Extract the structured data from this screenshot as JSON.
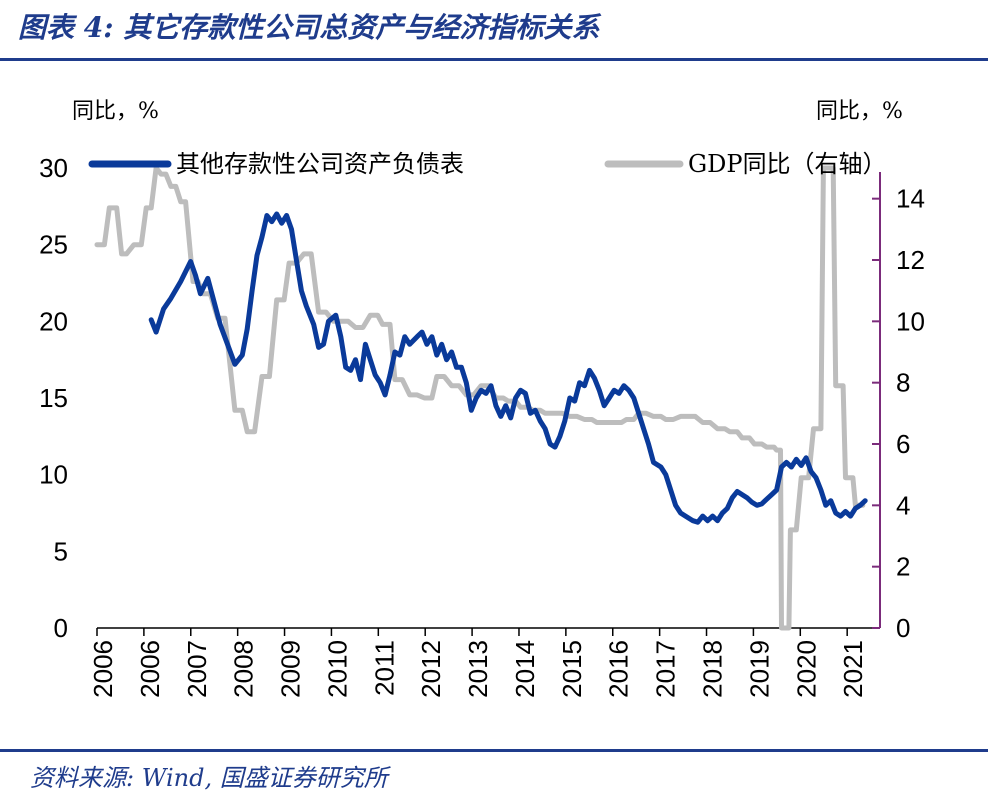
{
  "header": {
    "title": "图表 4: 其它存款性公司总资产与经济指标关系"
  },
  "footer": {
    "source": "资料来源: Wind, 国盛证券研究所"
  },
  "chart_data": {
    "type": "line",
    "left_unit": "同比，%",
    "right_unit": "同比，%",
    "left_ylim": [
      0,
      30
    ],
    "left_yticks": [
      0,
      5,
      10,
      15,
      20,
      25,
      30
    ],
    "right_ylim": [
      0,
      15
    ],
    "right_yticks": [
      0,
      2,
      4,
      6,
      8,
      10,
      12,
      14
    ],
    "xlim": [
      2006,
      2021.9
    ],
    "x_tick_labels": [
      "2006",
      "2006",
      "2007",
      "2008",
      "2009",
      "2010",
      "2011",
      "2012",
      "2013",
      "2014",
      "2015",
      "2016",
      "2017",
      "2018",
      "2019",
      "2020",
      "2021"
    ],
    "legend_position": "top",
    "series": [
      {
        "name": "其他存款性公司资产负债表",
        "axis": "left",
        "color": "#0a3a9a",
        "points": [
          [
            2007.1,
            20.1
          ],
          [
            2007.2,
            19.3
          ],
          [
            2007.35,
            20.8
          ],
          [
            2007.5,
            21.5
          ],
          [
            2007.7,
            22.6
          ],
          [
            2007.9,
            23.9
          ],
          [
            2008.0,
            23.0
          ],
          [
            2008.1,
            21.8
          ],
          [
            2008.25,
            22.8
          ],
          [
            2008.4,
            21.0
          ],
          [
            2008.5,
            19.8
          ],
          [
            2008.65,
            18.5
          ],
          [
            2008.8,
            17.2
          ],
          [
            2008.95,
            17.8
          ],
          [
            2009.05,
            19.5
          ],
          [
            2009.15,
            22.0
          ],
          [
            2009.25,
            24.3
          ],
          [
            2009.35,
            25.5
          ],
          [
            2009.45,
            26.9
          ],
          [
            2009.55,
            26.5
          ],
          [
            2009.65,
            27.0
          ],
          [
            2009.75,
            26.4
          ],
          [
            2009.85,
            26.9
          ],
          [
            2009.95,
            26.0
          ],
          [
            2010.05,
            24.0
          ],
          [
            2010.15,
            22.0
          ],
          [
            2010.25,
            21.0
          ],
          [
            2010.4,
            19.8
          ],
          [
            2010.5,
            18.3
          ],
          [
            2010.6,
            18.5
          ],
          [
            2010.7,
            20.0
          ],
          [
            2010.85,
            20.4
          ],
          [
            2010.95,
            19.0
          ],
          [
            2011.05,
            17.0
          ],
          [
            2011.15,
            16.8
          ],
          [
            2011.25,
            17.5
          ],
          [
            2011.35,
            16.2
          ],
          [
            2011.45,
            18.5
          ],
          [
            2011.55,
            17.5
          ],
          [
            2011.65,
            16.5
          ],
          [
            2011.75,
            16.0
          ],
          [
            2011.85,
            15.2
          ],
          [
            2011.95,
            16.5
          ],
          [
            2012.05,
            18.0
          ],
          [
            2012.15,
            17.8
          ],
          [
            2012.25,
            19.0
          ],
          [
            2012.35,
            18.5
          ],
          [
            2012.5,
            19.0
          ],
          [
            2012.6,
            19.3
          ],
          [
            2012.7,
            18.5
          ],
          [
            2012.8,
            19.0
          ],
          [
            2012.9,
            17.8
          ],
          [
            2013.0,
            18.5
          ],
          [
            2013.1,
            17.5
          ],
          [
            2013.2,
            18.0
          ],
          [
            2013.3,
            17.0
          ],
          [
            2013.4,
            17.0
          ],
          [
            2013.5,
            16.0
          ],
          [
            2013.6,
            14.2
          ],
          [
            2013.7,
            15.0
          ],
          [
            2013.8,
            15.5
          ],
          [
            2013.9,
            15.3
          ],
          [
            2014.0,
            15.8
          ],
          [
            2014.1,
            14.5
          ],
          [
            2014.2,
            13.8
          ],
          [
            2014.3,
            14.5
          ],
          [
            2014.4,
            13.7
          ],
          [
            2014.5,
            15.0
          ],
          [
            2014.6,
            15.5
          ],
          [
            2014.7,
            15.3
          ],
          [
            2014.8,
            14.0
          ],
          [
            2014.9,
            14.2
          ],
          [
            2015.0,
            13.5
          ],
          [
            2015.1,
            13.0
          ],
          [
            2015.2,
            12.0
          ],
          [
            2015.3,
            11.8
          ],
          [
            2015.4,
            12.5
          ],
          [
            2015.5,
            13.5
          ],
          [
            2015.6,
            15.0
          ],
          [
            2015.7,
            14.8
          ],
          [
            2015.8,
            16.0
          ],
          [
            2015.9,
            15.8
          ],
          [
            2016.0,
            16.8
          ],
          [
            2016.1,
            16.3
          ],
          [
            2016.2,
            15.5
          ],
          [
            2016.3,
            14.5
          ],
          [
            2016.4,
            15.0
          ],
          [
            2016.5,
            15.5
          ],
          [
            2016.6,
            15.3
          ],
          [
            2016.7,
            15.8
          ],
          [
            2016.8,
            15.5
          ],
          [
            2016.9,
            15.0
          ],
          [
            2017.0,
            14.0
          ],
          [
            2017.1,
            13.0
          ],
          [
            2017.2,
            12.0
          ],
          [
            2017.3,
            10.8
          ],
          [
            2017.45,
            10.5
          ],
          [
            2017.55,
            10.0
          ],
          [
            2017.65,
            9.0
          ],
          [
            2017.75,
            8.0
          ],
          [
            2017.85,
            7.5
          ],
          [
            2017.95,
            7.3
          ],
          [
            2018.1,
            7.0
          ],
          [
            2018.2,
            6.9
          ],
          [
            2018.3,
            7.3
          ],
          [
            2018.4,
            7.0
          ],
          [
            2018.5,
            7.3
          ],
          [
            2018.6,
            7.0
          ],
          [
            2018.7,
            7.5
          ],
          [
            2018.8,
            7.8
          ],
          [
            2018.9,
            8.5
          ],
          [
            2019.0,
            8.9
          ],
          [
            2019.1,
            8.7
          ],
          [
            2019.2,
            8.5
          ],
          [
            2019.3,
            8.2
          ],
          [
            2019.4,
            8.0
          ],
          [
            2019.5,
            8.1
          ],
          [
            2019.6,
            8.4
          ],
          [
            2019.7,
            8.7
          ],
          [
            2019.8,
            9.0
          ],
          [
            2019.9,
            10.5
          ],
          [
            2020.0,
            10.8
          ],
          [
            2020.1,
            10.5
          ],
          [
            2020.2,
            11.0
          ],
          [
            2020.3,
            10.6
          ],
          [
            2020.4,
            11.1
          ],
          [
            2020.5,
            10.2
          ],
          [
            2020.6,
            9.8
          ],
          [
            2020.7,
            9.0
          ],
          [
            2020.8,
            8.0
          ],
          [
            2020.9,
            8.3
          ],
          [
            2021.0,
            7.5
          ],
          [
            2021.1,
            7.3
          ],
          [
            2021.2,
            7.6
          ],
          [
            2021.3,
            7.3
          ],
          [
            2021.4,
            7.8
          ],
          [
            2021.5,
            8.0
          ],
          [
            2021.6,
            8.3
          ]
        ]
      },
      {
        "name": "GDP同比（右轴）",
        "axis": "right",
        "color": "#bdbdbd",
        "points": [
          [
            2006.0,
            12.5
          ],
          [
            2006.15,
            12.5
          ],
          [
            2006.25,
            13.7
          ],
          [
            2006.4,
            13.7
          ],
          [
            2006.5,
            12.2
          ],
          [
            2006.6,
            12.2
          ],
          [
            2006.75,
            12.5
          ],
          [
            2006.9,
            12.5
          ],
          [
            2007.0,
            13.7
          ],
          [
            2007.1,
            13.7
          ],
          [
            2007.2,
            15.0
          ],
          [
            2007.3,
            14.8
          ],
          [
            2007.4,
            14.8
          ],
          [
            2007.5,
            14.4
          ],
          [
            2007.6,
            14.4
          ],
          [
            2007.7,
            13.9
          ],
          [
            2007.8,
            13.9
          ],
          [
            2007.95,
            11.3
          ],
          [
            2008.05,
            11.3
          ],
          [
            2008.15,
            10.9
          ],
          [
            2008.3,
            10.9
          ],
          [
            2008.45,
            10.1
          ],
          [
            2008.6,
            10.1
          ],
          [
            2008.8,
            7.1
          ],
          [
            2008.95,
            7.1
          ],
          [
            2009.05,
            6.4
          ],
          [
            2009.2,
            6.4
          ],
          [
            2009.35,
            8.2
          ],
          [
            2009.5,
            8.2
          ],
          [
            2009.65,
            10.7
          ],
          [
            2009.8,
            10.7
          ],
          [
            2009.9,
            11.9
          ],
          [
            2010.05,
            11.9
          ],
          [
            2010.2,
            12.2
          ],
          [
            2010.35,
            12.2
          ],
          [
            2010.5,
            10.3
          ],
          [
            2010.65,
            10.3
          ],
          [
            2010.8,
            10.0
          ],
          [
            2010.95,
            10.0
          ],
          [
            2011.1,
            10.0
          ],
          [
            2011.25,
            9.8
          ],
          [
            2011.4,
            9.8
          ],
          [
            2011.55,
            10.2
          ],
          [
            2011.7,
            10.2
          ],
          [
            2011.8,
            9.9
          ],
          [
            2011.95,
            9.9
          ],
          [
            2012.05,
            8.1
          ],
          [
            2012.2,
            8.1
          ],
          [
            2012.35,
            7.6
          ],
          [
            2012.5,
            7.6
          ],
          [
            2012.65,
            7.5
          ],
          [
            2012.8,
            7.5
          ],
          [
            2012.9,
            8.2
          ],
          [
            2013.05,
            8.2
          ],
          [
            2013.2,
            7.9
          ],
          [
            2013.35,
            7.9
          ],
          [
            2013.5,
            7.6
          ],
          [
            2013.65,
            7.6
          ],
          [
            2013.8,
            7.9
          ],
          [
            2013.95,
            7.9
          ],
          [
            2014.1,
            7.5
          ],
          [
            2014.25,
            7.5
          ],
          [
            2014.35,
            7.4
          ],
          [
            2014.5,
            7.4
          ],
          [
            2014.6,
            7.2
          ],
          [
            2014.75,
            7.2
          ],
          [
            2014.85,
            7.1
          ],
          [
            2015.0,
            7.1
          ],
          [
            2015.1,
            7.0
          ],
          [
            2015.3,
            7.0
          ],
          [
            2015.45,
            7.0
          ],
          [
            2015.6,
            6.9
          ],
          [
            2015.75,
            6.9
          ],
          [
            2015.9,
            6.8
          ],
          [
            2016.05,
            6.8
          ],
          [
            2016.15,
            6.7
          ],
          [
            2016.3,
            6.7
          ],
          [
            2016.5,
            6.7
          ],
          [
            2016.65,
            6.7
          ],
          [
            2016.75,
            6.8
          ],
          [
            2016.9,
            6.8
          ],
          [
            2017.0,
            7.0
          ],
          [
            2017.15,
            7.0
          ],
          [
            2017.3,
            6.9
          ],
          [
            2017.45,
            6.9
          ],
          [
            2017.55,
            6.8
          ],
          [
            2017.7,
            6.8
          ],
          [
            2017.85,
            6.9
          ],
          [
            2018.0,
            6.9
          ],
          [
            2018.15,
            6.9
          ],
          [
            2018.3,
            6.7
          ],
          [
            2018.45,
            6.7
          ],
          [
            2018.6,
            6.5
          ],
          [
            2018.75,
            6.5
          ],
          [
            2018.85,
            6.4
          ],
          [
            2019.0,
            6.4
          ],
          [
            2019.1,
            6.2
          ],
          [
            2019.25,
            6.2
          ],
          [
            2019.35,
            6.0
          ],
          [
            2019.5,
            6.0
          ],
          [
            2019.6,
            5.9
          ],
          [
            2019.75,
            5.9
          ],
          [
            2019.8,
            5.8
          ],
          [
            2019.88,
            5.8
          ],
          [
            2019.9,
            0.0
          ],
          [
            2020.05,
            0.0
          ],
          [
            2020.08,
            3.2
          ],
          [
            2020.2,
            3.2
          ],
          [
            2020.3,
            4.9
          ],
          [
            2020.45,
            4.9
          ],
          [
            2020.55,
            6.5
          ],
          [
            2020.7,
            6.5
          ],
          [
            2020.75,
            15.0
          ],
          [
            2020.95,
            15.0
          ],
          [
            2021.0,
            7.9
          ],
          [
            2021.15,
            7.9
          ],
          [
            2021.2,
            4.9
          ],
          [
            2021.35,
            4.9
          ],
          [
            2021.4,
            4.0
          ],
          [
            2021.55,
            4.0
          ]
        ]
      }
    ]
  }
}
